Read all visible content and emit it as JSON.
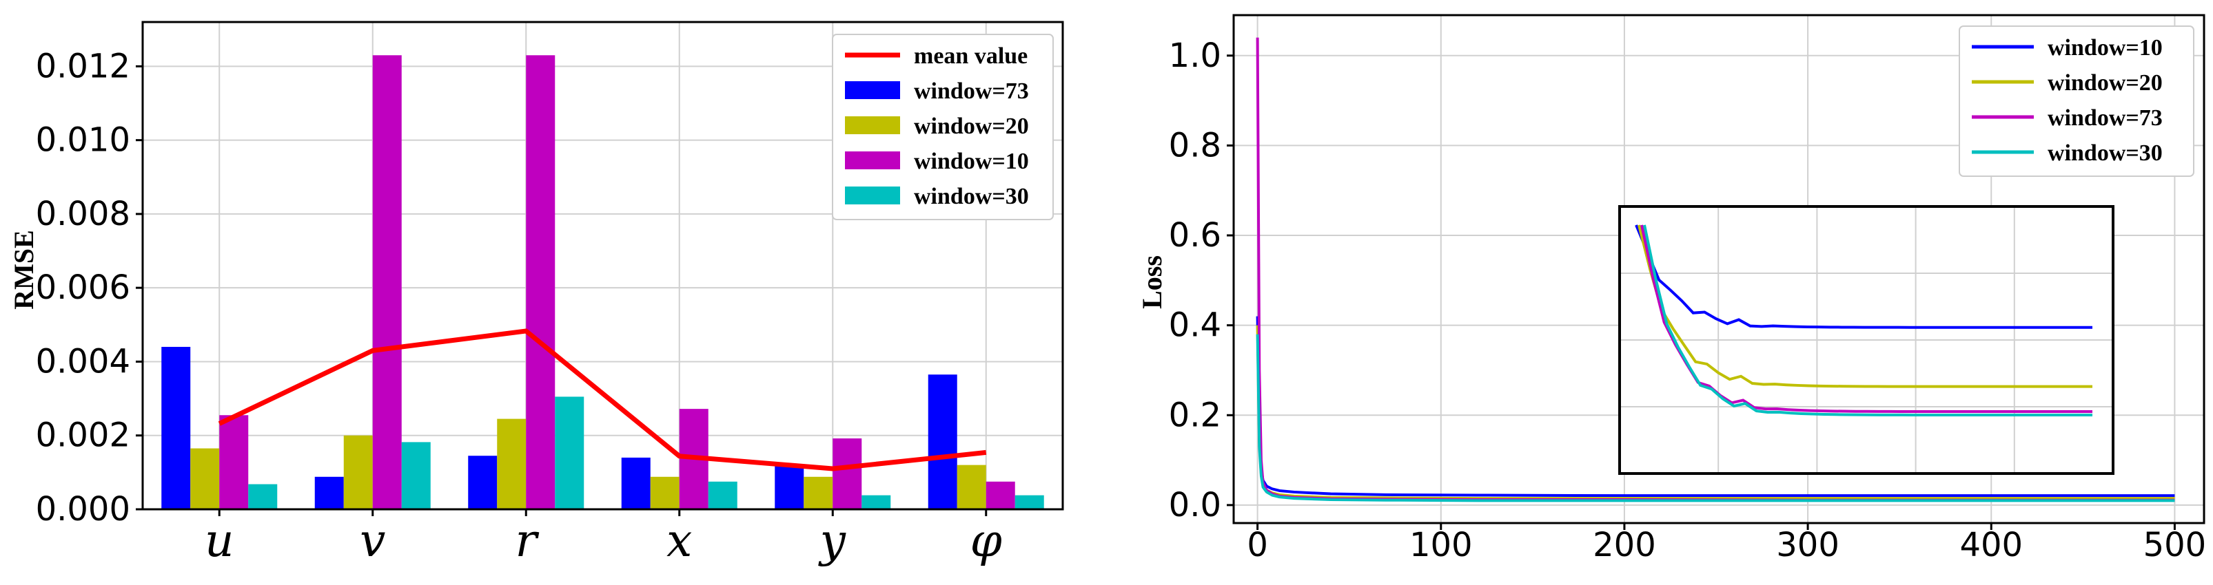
{
  "chart_data": [
    {
      "type": "bar",
      "title": "",
      "xlabel": "",
      "ylabel": "RMSE",
      "ylim": [
        0,
        0.0132
      ],
      "yticks": [
        0.0,
        0.002,
        0.004,
        0.006,
        0.008,
        0.01,
        0.012
      ],
      "ytick_labels": [
        "0.000",
        "0.002",
        "0.004",
        "0.006",
        "0.008",
        "0.010",
        "0.012"
      ],
      "categories": [
        "u",
        "v",
        "r",
        "x",
        "y",
        "φ"
      ],
      "series": [
        {
          "name": "window=73",
          "color": "#0000ff",
          "values": [
            0.0044,
            0.00088,
            0.00145,
            0.0014,
            0.0012,
            0.00365
          ]
        },
        {
          "name": "window=20",
          "color": "#bfbf00",
          "values": [
            0.00165,
            0.002,
            0.00245,
            0.00088,
            0.00088,
            0.0012
          ]
        },
        {
          "name": "window=10",
          "color": "#bf00bf",
          "values": [
            0.00255,
            0.0123,
            0.0123,
            0.00272,
            0.00192,
            0.00075
          ]
        },
        {
          "name": "window=30",
          "color": "#00bfbf",
          "values": [
            0.00068,
            0.00182,
            0.00305,
            0.00075,
            0.00038,
            0.00038
          ]
        }
      ],
      "line": {
        "name": "mean value",
        "color": "#ff0000",
        "values": [
          0.00232,
          0.0043,
          0.00483,
          0.00144,
          0.0011,
          0.00154
        ]
      },
      "legend_position": "top-right",
      "grid": true
    },
    {
      "type": "line",
      "title": "",
      "xlabel": "",
      "ylabel": "Loss",
      "xlim": [
        -13,
        516
      ],
      "ylim": [
        -0.04,
        1.09
      ],
      "xticks": [
        0,
        100,
        200,
        300,
        400,
        500
      ],
      "xtick_labels": [
        "0",
        "100",
        "200",
        "300",
        "400",
        "500"
      ],
      "yticks": [
        0.0,
        0.2,
        0.4,
        0.6,
        0.8,
        1.0
      ],
      "ytick_labels": [
        "0.0",
        "0.2",
        "0.4",
        "0.6",
        "0.8",
        "1.0"
      ],
      "series": [
        {
          "name": "window=10",
          "color": "#0000ff",
          "x": [
            0,
            1,
            2,
            3,
            5,
            8,
            12,
            20,
            40,
            70,
            120,
            200,
            300,
            400,
            500
          ],
          "y": [
            0.42,
            0.15,
            0.08,
            0.055,
            0.042,
            0.036,
            0.032,
            0.029,
            0.025,
            0.023,
            0.022,
            0.021,
            0.021,
            0.021,
            0.021
          ]
        },
        {
          "name": "window=20",
          "color": "#bfbf00",
          "x": [
            0,
            1,
            2,
            3,
            5,
            8,
            12,
            20,
            40,
            70,
            120,
            200,
            300,
            400,
            500
          ],
          "y": [
            0.4,
            0.14,
            0.07,
            0.045,
            0.033,
            0.027,
            0.023,
            0.02,
            0.017,
            0.016,
            0.015,
            0.015,
            0.015,
            0.015,
            0.015
          ]
        },
        {
          "name": "window=73",
          "color": "#bf00bf",
          "x": [
            0,
            1,
            2,
            3,
            5,
            8,
            12,
            20,
            40,
            70,
            120,
            200,
            300,
            400,
            500
          ],
          "y": [
            1.04,
            0.3,
            0.1,
            0.05,
            0.033,
            0.025,
            0.02,
            0.017,
            0.014,
            0.013,
            0.012,
            0.012,
            0.011,
            0.011,
            0.011
          ]
        },
        {
          "name": "window=30",
          "color": "#00bfbf",
          "x": [
            0,
            1,
            2,
            3,
            5,
            8,
            12,
            20,
            40,
            70,
            120,
            200,
            300,
            400,
            500
          ],
          "y": [
            0.38,
            0.13,
            0.065,
            0.04,
            0.029,
            0.022,
            0.018,
            0.015,
            0.012,
            0.011,
            0.01,
            0.01,
            0.01,
            0.01,
            0.01
          ]
        }
      ],
      "inset": {
        "description": "zoomed view of converging loss curves",
        "levels": {
          "window=10": 0.55,
          "window=20": 0.29,
          "window=73": 0.18,
          "window=30": 0.165
        }
      },
      "legend_position": "top-right",
      "grid": true
    }
  ]
}
